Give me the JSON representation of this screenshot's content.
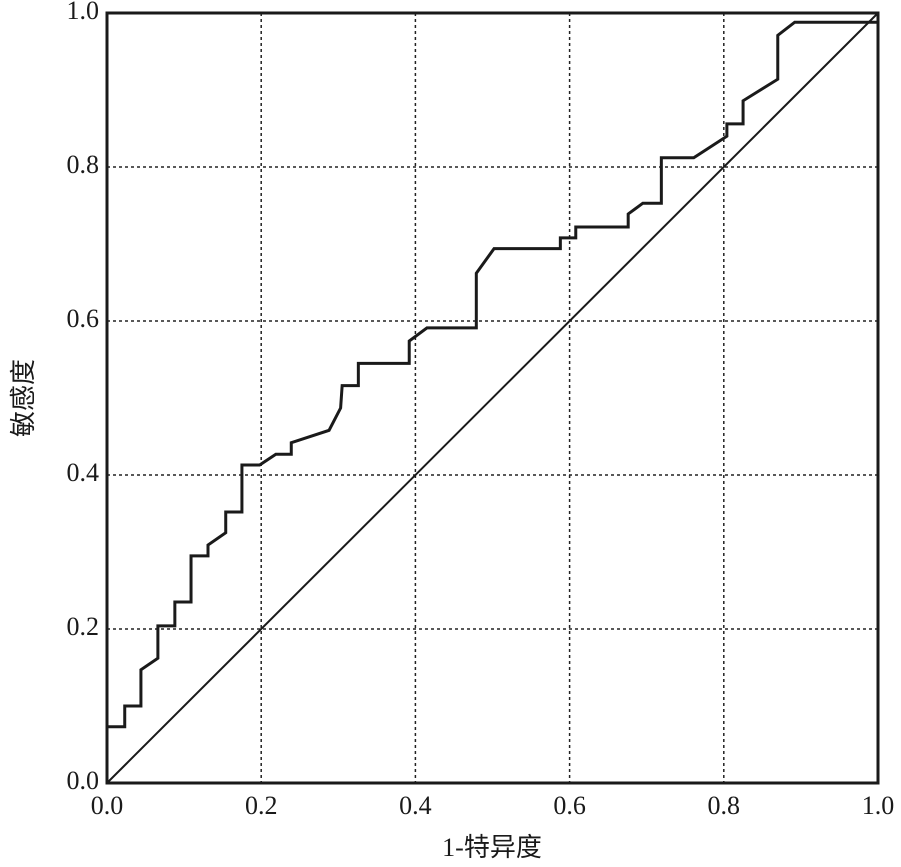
{
  "chart_data": {
    "type": "line",
    "xlabel": "1-特异度",
    "ylabel": "敏感度",
    "xlim": [
      0,
      1
    ],
    "ylim": [
      0,
      1
    ],
    "xticks": [
      {
        "value": 0,
        "label": "0.0"
      },
      0.2,
      0.4,
      0.6,
      0.8,
      {
        "value": 1,
        "label": "1.0"
      }
    ],
    "yticks": [
      {
        "value": 0,
        "label": "0.0"
      },
      0.2,
      0.4,
      0.6,
      0.8,
      {
        "value": 1,
        "label": "1.0"
      }
    ],
    "grid": true,
    "series": [
      {
        "color": "#1a1a1a",
        "width": 3,
        "x": [
          0,
          0.023,
          0.023,
          0.044,
          0.044,
          0.066,
          0.066,
          0.088,
          0.088,
          0.109,
          0.109,
          0.131,
          0.131,
          0.154,
          0.154,
          0.175,
          0.175,
          0.198,
          0.219,
          0.239,
          0.239,
          0.288,
          0.303,
          0.305,
          0.326,
          0.326,
          0.392,
          0.392,
          0.415,
          0.479,
          0.479,
          0.502,
          0.588,
          0.588,
          0.608,
          0.608,
          0.676,
          0.676,
          0.695,
          0.719,
          0.719,
          0.761,
          0.804,
          0.804,
          0.825,
          0.825,
          0.87,
          0.87,
          0.892,
          1
        ],
        "values": [
          0.073,
          0.073,
          0.1,
          0.1,
          0.147,
          0.162,
          0.204,
          0.204,
          0.235,
          0.235,
          0.295,
          0.295,
          0.309,
          0.325,
          0.352,
          0.352,
          0.413,
          0.413,
          0.427,
          0.427,
          0.442,
          0.458,
          0.487,
          0.516,
          0.516,
          0.545,
          0.545,
          0.574,
          0.591,
          0.591,
          0.662,
          0.694,
          0.694,
          0.708,
          0.708,
          0.722,
          0.722,
          0.739,
          0.753,
          0.753,
          0.812,
          0.812,
          0.84,
          0.856,
          0.856,
          0.886,
          0.914,
          0.971,
          0.988,
          0.988
        ]
      },
      {
        "color": "#1a1a1a",
        "width": 2,
        "x": [
          0,
          1
        ],
        "values": [
          0,
          1
        ]
      }
    ]
  }
}
